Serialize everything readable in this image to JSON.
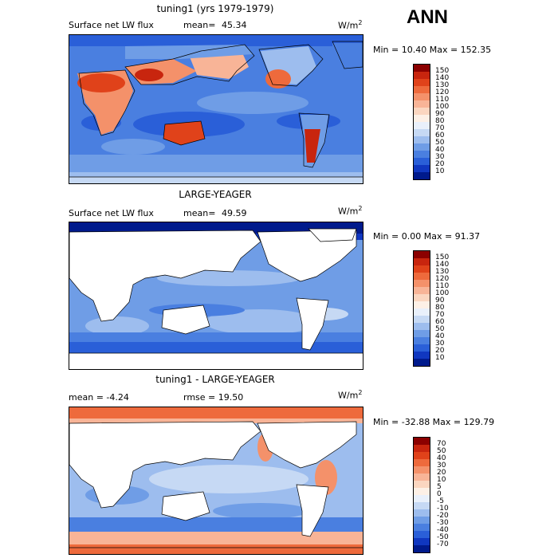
{
  "season": "ANN",
  "panels": [
    {
      "title": "tuning1 (yrs 1979-1979)",
      "field_label": "Surface net LW flux",
      "mean_label": "mean=",
      "mean_value": "45.34",
      "units_base": "W/m",
      "units_exp": "2",
      "range_text": "Min =  10.40 Max = 152.35",
      "colorbar_labels": [
        "150",
        "140",
        "130",
        "120",
        "110",
        "100",
        "90",
        "80",
        "70",
        "60",
        "50",
        "40",
        "30",
        "20",
        "10"
      ]
    },
    {
      "title": "LARGE-YEAGER",
      "field_label": "Surface net LW flux",
      "mean_label": "mean=",
      "mean_value": "49.59",
      "units_base": "W/m",
      "units_exp": "2",
      "range_text": "Min =   0.00 Max =  91.37",
      "colorbar_labels": [
        "150",
        "140",
        "130",
        "120",
        "110",
        "100",
        "90",
        "80",
        "70",
        "60",
        "50",
        "40",
        "30",
        "20",
        "10"
      ]
    },
    {
      "title": "tuning1 - LARGE-YEAGER",
      "mean_text": "mean =  -4.24",
      "rmse_text": "rmse =  19.50",
      "units_base": "W/m",
      "units_exp": "2",
      "range_text": "Min = -32.88 Max = 129.79",
      "colorbar_labels": [
        "70",
        "50",
        "40",
        "30",
        "20",
        "10",
        "5",
        "0",
        "-5",
        "-10",
        "-20",
        "-30",
        "-40",
        "-50",
        "-70"
      ]
    }
  ],
  "colors": {
    "abs_scale": [
      "#8b0000",
      "#c8250e",
      "#e0421a",
      "#ee6a3c",
      "#f4916a",
      "#f8b497",
      "#fbd6c0",
      "#fdf0e6",
      "#e9f0fb",
      "#c6d9f4",
      "#9dbdee",
      "#6f9de6",
      "#4a7fe0",
      "#2a5fd8",
      "#1037c0",
      "#001a8c"
    ],
    "diff_scale": [
      "#8b0000",
      "#c8250e",
      "#e0421a",
      "#ee6a3c",
      "#f4916a",
      "#f8b497",
      "#fbd6c0",
      "#fdf0e6",
      "#e9f0fb",
      "#c6d9f4",
      "#9dbdee",
      "#6f9de6",
      "#4a7fe0",
      "#2a5fd8",
      "#1037c0",
      "#001a8c"
    ]
  }
}
